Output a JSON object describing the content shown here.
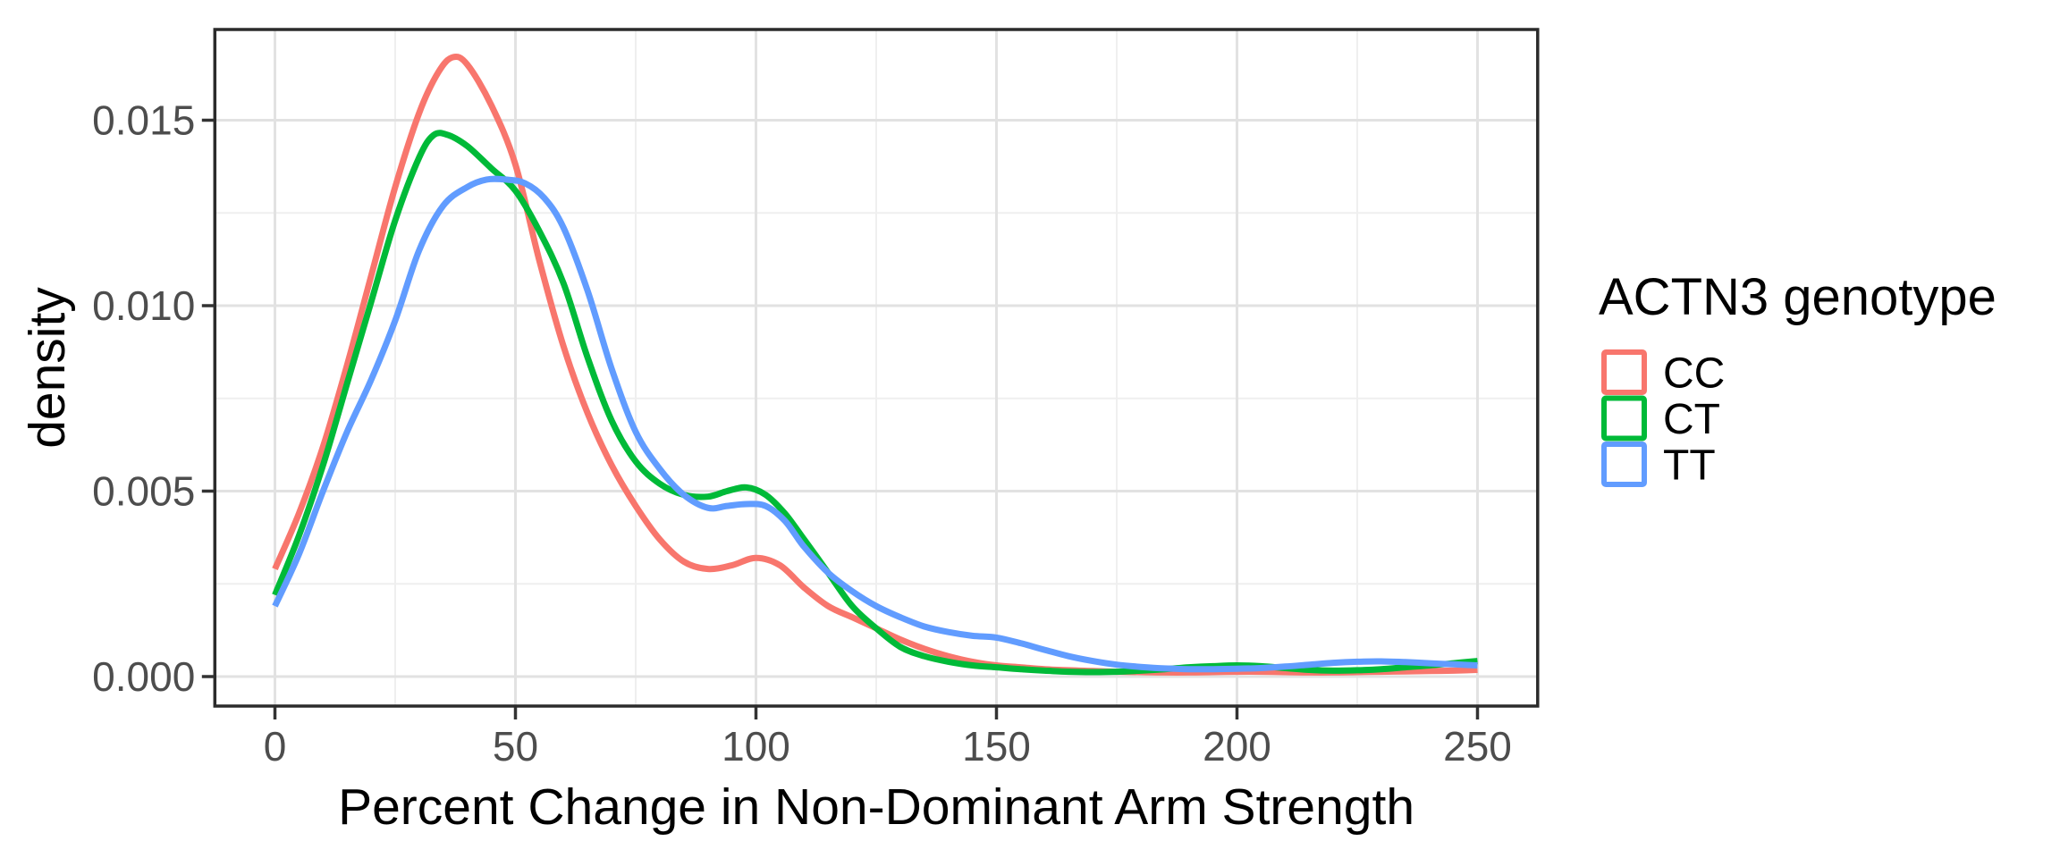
{
  "figure": {
    "background": "#FFFFFF",
    "panel_background": "#FFFFFF",
    "panel_border_color": "#2B2B2B",
    "grid_major_color": "#E2E2E2",
    "grid_minor_color": "#EFEFEF",
    "tick_mark_color": "#333333",
    "tick_label_color": "#4D4D4D",
    "title_color": "#000000"
  },
  "chart_data": {
    "type": "line",
    "subtype": "kernel-density",
    "title": "",
    "xlabel": "Percent Change in Non-Dominant Arm Strength",
    "ylabel": "density",
    "grid": {
      "major": true,
      "minor": true
    },
    "x_axis": {
      "tick_labels": [
        "0",
        "50",
        "100",
        "150",
        "200",
        "250"
      ],
      "tick_values": [
        0,
        50,
        100,
        150,
        200,
        250
      ],
      "minor_tick_values": [
        25,
        75,
        125,
        175,
        225
      ],
      "range_shown": [
        -12.5,
        262.5
      ]
    },
    "y_axis": {
      "tick_labels": [
        "0.000",
        "0.005",
        "0.010",
        "0.015"
      ],
      "tick_values": [
        0,
        0.005,
        0.01,
        0.015
      ],
      "minor_tick_values": [
        0.0025,
        0.0075,
        0.0125
      ],
      "range_shown": [
        -0.00087,
        0.01745
      ]
    },
    "legend": {
      "title": "ACTN3 genotype",
      "position": "right",
      "entries": [
        {
          "label": "CC",
          "color": "#F8766D"
        },
        {
          "label": "CT",
          "color": "#00BA38"
        },
        {
          "label": "TT",
          "color": "#619CFF"
        }
      ]
    },
    "series": [
      {
        "name": "CC",
        "color": "#F8766D",
        "points": [
          [
            0,
            0.0029
          ],
          [
            5,
            0.0044
          ],
          [
            10,
            0.0062
          ],
          [
            15,
            0.0084
          ],
          [
            20,
            0.0108
          ],
          [
            25,
            0.0132
          ],
          [
            30,
            0.0152
          ],
          [
            34,
            0.0163
          ],
          [
            37,
            0.0167
          ],
          [
            40,
            0.0165
          ],
          [
            45,
            0.0154
          ],
          [
            50,
            0.0138
          ],
          [
            55,
            0.0112
          ],
          [
            60,
            0.0089
          ],
          [
            65,
            0.0071
          ],
          [
            70,
            0.0057
          ],
          [
            75,
            0.0046
          ],
          [
            80,
            0.0037
          ],
          [
            85,
            0.0031
          ],
          [
            90,
            0.0029
          ],
          [
            95,
            0.003
          ],
          [
            100,
            0.0032
          ],
          [
            105,
            0.003
          ],
          [
            110,
            0.0024
          ],
          [
            115,
            0.0019
          ],
          [
            120,
            0.0016
          ],
          [
            125,
            0.0013
          ],
          [
            130,
            0.001
          ],
          [
            135,
            0.00075
          ],
          [
            140,
            0.00055
          ],
          [
            145,
            0.0004
          ],
          [
            150,
            0.0003
          ],
          [
            155,
            0.00025
          ],
          [
            160,
            0.0002
          ],
          [
            165,
            0.00017
          ],
          [
            170,
            0.00015
          ],
          [
            175,
            0.00013
          ],
          [
            180,
            0.00012
          ],
          [
            185,
            0.00011
          ],
          [
            190,
            0.00011
          ],
          [
            195,
            0.00012
          ],
          [
            200,
            0.00013
          ],
          [
            205,
            0.00013
          ],
          [
            210,
            0.00012
          ],
          [
            215,
            0.00011
          ],
          [
            220,
            0.00011
          ],
          [
            225,
            0.00012
          ],
          [
            230,
            0.00013
          ],
          [
            235,
            0.00014
          ],
          [
            240,
            0.00015
          ],
          [
            245,
            0.00016
          ],
          [
            250,
            0.00018
          ]
        ]
      },
      {
        "name": "CT",
        "color": "#00BA38",
        "points": [
          [
            0,
            0.0022
          ],
          [
            5,
            0.0038
          ],
          [
            10,
            0.0057
          ],
          [
            15,
            0.0079
          ],
          [
            20,
            0.0101
          ],
          [
            25,
            0.0123
          ],
          [
            30,
            0.014
          ],
          [
            33,
            0.0146
          ],
          [
            36,
            0.0146
          ],
          [
            40,
            0.0143
          ],
          [
            45,
            0.0137
          ],
          [
            50,
            0.0131
          ],
          [
            55,
            0.012
          ],
          [
            60,
            0.0106
          ],
          [
            65,
            0.0086
          ],
          [
            70,
            0.0069
          ],
          [
            75,
            0.0058
          ],
          [
            80,
            0.0052
          ],
          [
            85,
            0.0049
          ],
          [
            90,
            0.00485
          ],
          [
            94,
            0.005
          ],
          [
            98,
            0.0051
          ],
          [
            102,
            0.0049
          ],
          [
            106,
            0.0044
          ],
          [
            110,
            0.0037
          ],
          [
            115,
            0.0028
          ],
          [
            120,
            0.0019
          ],
          [
            125,
            0.0013
          ],
          [
            130,
            0.0008
          ],
          [
            135,
            0.00055
          ],
          [
            140,
            0.0004
          ],
          [
            145,
            0.0003
          ],
          [
            150,
            0.00025
          ],
          [
            155,
            0.0002
          ],
          [
            160,
            0.00016
          ],
          [
            165,
            0.00013
          ],
          [
            170,
            0.00012
          ],
          [
            175,
            0.00013
          ],
          [
            180,
            0.00016
          ],
          [
            185,
            0.0002
          ],
          [
            190,
            0.00025
          ],
          [
            195,
            0.00028
          ],
          [
            200,
            0.0003
          ],
          [
            205,
            0.00028
          ],
          [
            210,
            0.00023
          ],
          [
            215,
            0.00018
          ],
          [
            220,
            0.00016
          ],
          [
            225,
            0.00017
          ],
          [
            230,
            0.0002
          ],
          [
            235,
            0.00025
          ],
          [
            240,
            0.0003
          ],
          [
            245,
            0.00036
          ],
          [
            250,
            0.00042
          ]
        ]
      },
      {
        "name": "TT",
        "color": "#619CFF",
        "points": [
          [
            0,
            0.0019
          ],
          [
            5,
            0.0033
          ],
          [
            10,
            0.005
          ],
          [
            15,
            0.0066
          ],
          [
            20,
            0.008
          ],
          [
            25,
            0.0096
          ],
          [
            30,
            0.0115
          ],
          [
            35,
            0.0127
          ],
          [
            40,
            0.0132
          ],
          [
            44,
            0.0134
          ],
          [
            48,
            0.0134
          ],
          [
            52,
            0.0133
          ],
          [
            56,
            0.0129
          ],
          [
            60,
            0.0121
          ],
          [
            65,
            0.0104
          ],
          [
            70,
            0.0083
          ],
          [
            75,
            0.0066
          ],
          [
            80,
            0.0056
          ],
          [
            85,
            0.0049
          ],
          [
            90,
            0.00455
          ],
          [
            94,
            0.0046
          ],
          [
            98,
            0.00465
          ],
          [
            102,
            0.0046
          ],
          [
            106,
            0.0042
          ],
          [
            110,
            0.0035
          ],
          [
            115,
            0.0028
          ],
          [
            120,
            0.0023
          ],
          [
            125,
            0.0019
          ],
          [
            130,
            0.0016
          ],
          [
            135,
            0.00135
          ],
          [
            140,
            0.0012
          ],
          [
            145,
            0.0011
          ],
          [
            150,
            0.00105
          ],
          [
            155,
            0.0009
          ],
          [
            160,
            0.00072
          ],
          [
            165,
            0.00055
          ],
          [
            170,
            0.00042
          ],
          [
            175,
            0.00032
          ],
          [
            180,
            0.00026
          ],
          [
            185,
            0.00022
          ],
          [
            190,
            0.0002
          ],
          [
            195,
            0.0002
          ],
          [
            200,
            0.00021
          ],
          [
            205,
            0.00023
          ],
          [
            210,
            0.00027
          ],
          [
            215,
            0.00032
          ],
          [
            220,
            0.00037
          ],
          [
            225,
            0.0004
          ],
          [
            230,
            0.00041
          ],
          [
            235,
            0.00039
          ],
          [
            240,
            0.00036
          ],
          [
            245,
            0.00033
          ],
          [
            250,
            0.0003
          ]
        ]
      }
    ]
  }
}
